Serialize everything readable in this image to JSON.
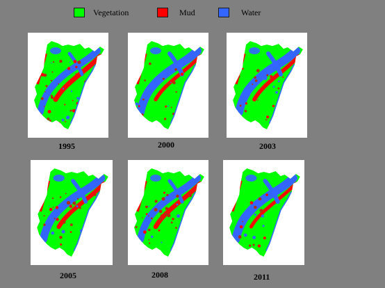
{
  "legend": [
    {
      "label": "Vegetation",
      "color": "#00ff00"
    },
    {
      "label": "Mud",
      "color": "#ff0000"
    },
    {
      "label": "Water",
      "color": "#3366ff"
    }
  ],
  "maps": [
    {
      "year": "1995"
    },
    {
      "year": "2000"
    },
    {
      "year": "2003"
    },
    {
      "year": "2005"
    },
    {
      "year": "2008"
    },
    {
      "year": "2011"
    }
  ],
  "colors": {
    "background": "#808080",
    "vegetation": "#00ff00",
    "mud": "#ff0000",
    "water": "#3366ff",
    "mud_dark": "#b03010"
  }
}
